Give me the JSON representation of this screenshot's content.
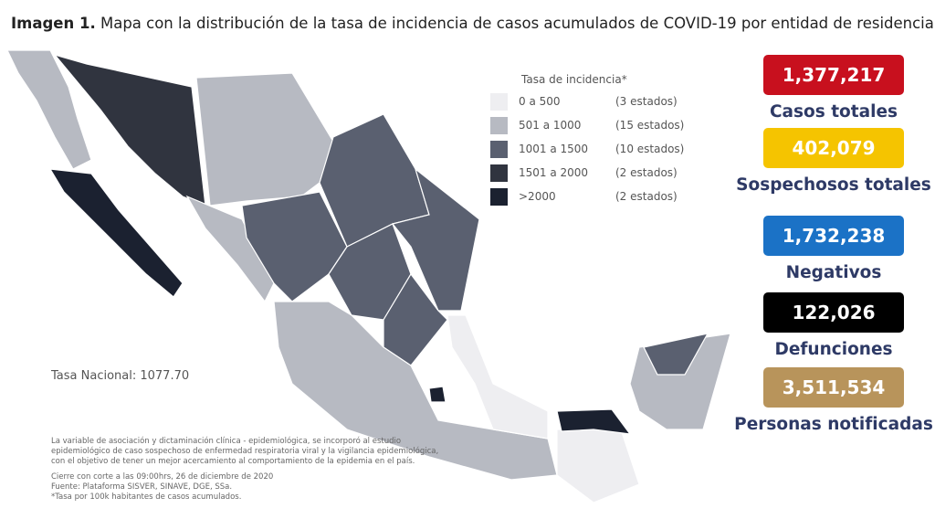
{
  "header": {
    "title_bold": "Imagen 1.",
    "title": "Mapa con la distribución de la tasa de incidencia de casos acumulados de COVID-19 por entidad de residencia."
  },
  "legend": {
    "title": "Tasa de incidencia*",
    "items": [
      {
        "range": "0 a 500",
        "count": "(3 estados)",
        "color": "#eeeef1"
      },
      {
        "range": "501 a 1000",
        "count": "(15 estados)",
        "color": "#b7bac2"
      },
      {
        "range": "1001 a 1500",
        "count": "(10 estados)",
        "color": "#5a6070"
      },
      {
        "range": "1501 a 2000",
        "count": "(2 estados)",
        "color": "#30343f"
      },
      {
        "range": ">2000",
        "count": "(2 estados)",
        "color": "#1b2130"
      }
    ]
  },
  "national_rate": "Tasa Nacional: 1077.70",
  "stats": [
    {
      "value": "1,377,217",
      "label": "Casos totales",
      "color": "#c8101e"
    },
    {
      "value": "402,079",
      "label": "Sospechosos totales",
      "color": "#f5c400"
    },
    {
      "value": "1,732,238",
      "label": "Negativos",
      "color": "#1b72c6"
    },
    {
      "value": "122,026",
      "label": "Defunciones",
      "color": "#000000"
    },
    {
      "value": "3,511,534",
      "label": "Personas notificadas",
      "color": "#b8945b"
    }
  ],
  "notes": {
    "paragraph": [
      "La variable de asociación y dictaminación clínica - epidemiológica, se incorporó al estudio",
      "epidemiológico de caso sospechoso de enfermedad respiratoria viral y la vigilancia epidemiológica,",
      "con el objetivo de tener un mejor acercamiento al comportamiento de la epidemia en el país."
    ],
    "footer": [
      "Cierre con corte a las 09:00hrs, 26 de diciembre de 2020",
      "Fuente: Plataforma SISVER, SINAVE, DGE, SSa.",
      "*Tasa por 100k habitantes de casos acumulados."
    ]
  }
}
